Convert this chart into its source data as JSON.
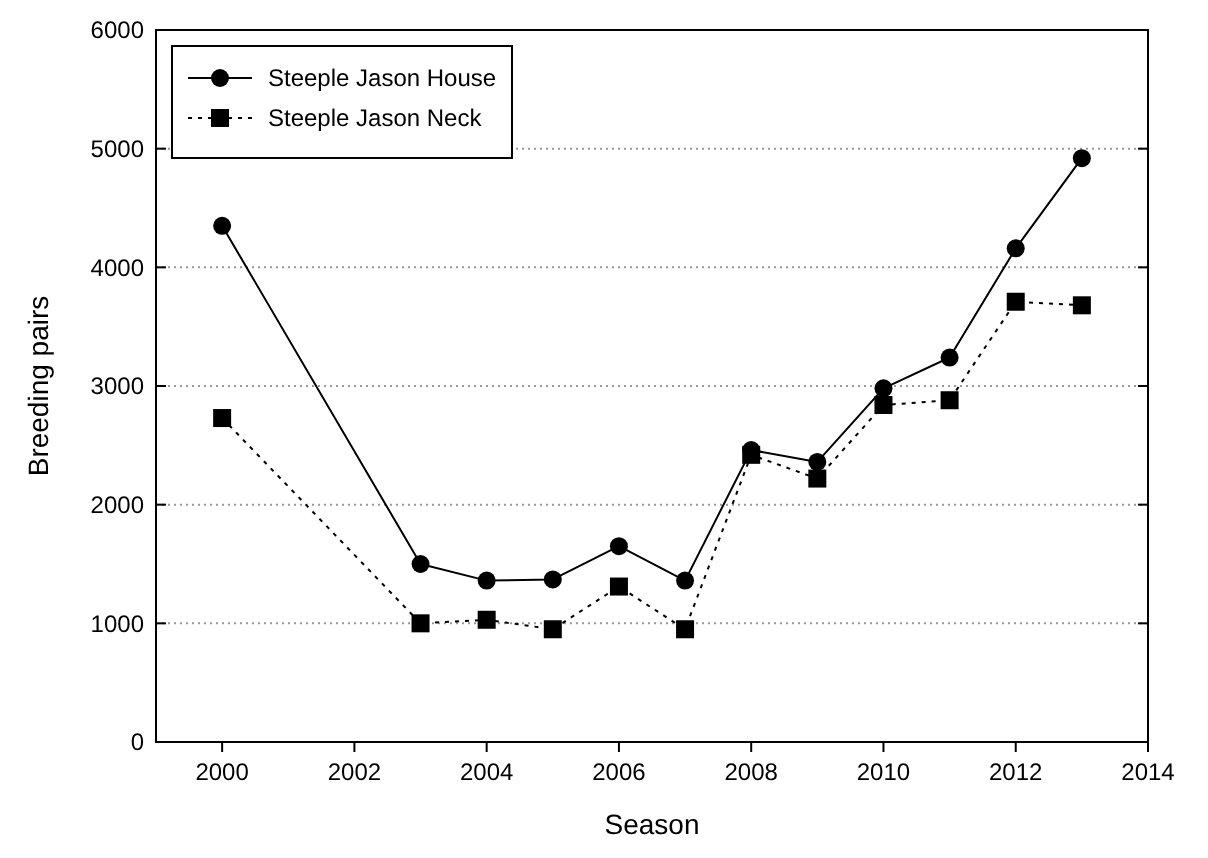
{
  "chart_data": {
    "type": "line",
    "xlabel": "Season",
    "ylabel": "Breeding pairs",
    "x": [
      2000,
      2003,
      2004,
      2005,
      2006,
      2007,
      2008,
      2009,
      2010,
      2011,
      2012,
      2013
    ],
    "series": [
      {
        "name": "Steeple Jason House",
        "color": "#000000",
        "marker": "circle",
        "line_style": "solid",
        "values": [
          4350,
          1500,
          1360,
          1370,
          1650,
          1360,
          2460,
          2360,
          2980,
          3240,
          4160,
          4920
        ]
      },
      {
        "name": "Steeple Jason Neck",
        "color": "#000000",
        "marker": "square",
        "line_style": "dotted",
        "values": [
          2730,
          1000,
          1030,
          950,
          1310,
          950,
          2420,
          2220,
          2840,
          2880,
          3710,
          3680
        ]
      }
    ],
    "xlim": [
      1999,
      2014
    ],
    "xticks": [
      2000,
      2002,
      2004,
      2006,
      2008,
      2010,
      2012,
      2014
    ],
    "ylim": [
      0,
      6000
    ],
    "yticks": [
      0,
      1000,
      2000,
      3000,
      4000,
      5000,
      6000
    ],
    "grid": "y",
    "legend": "top left"
  }
}
